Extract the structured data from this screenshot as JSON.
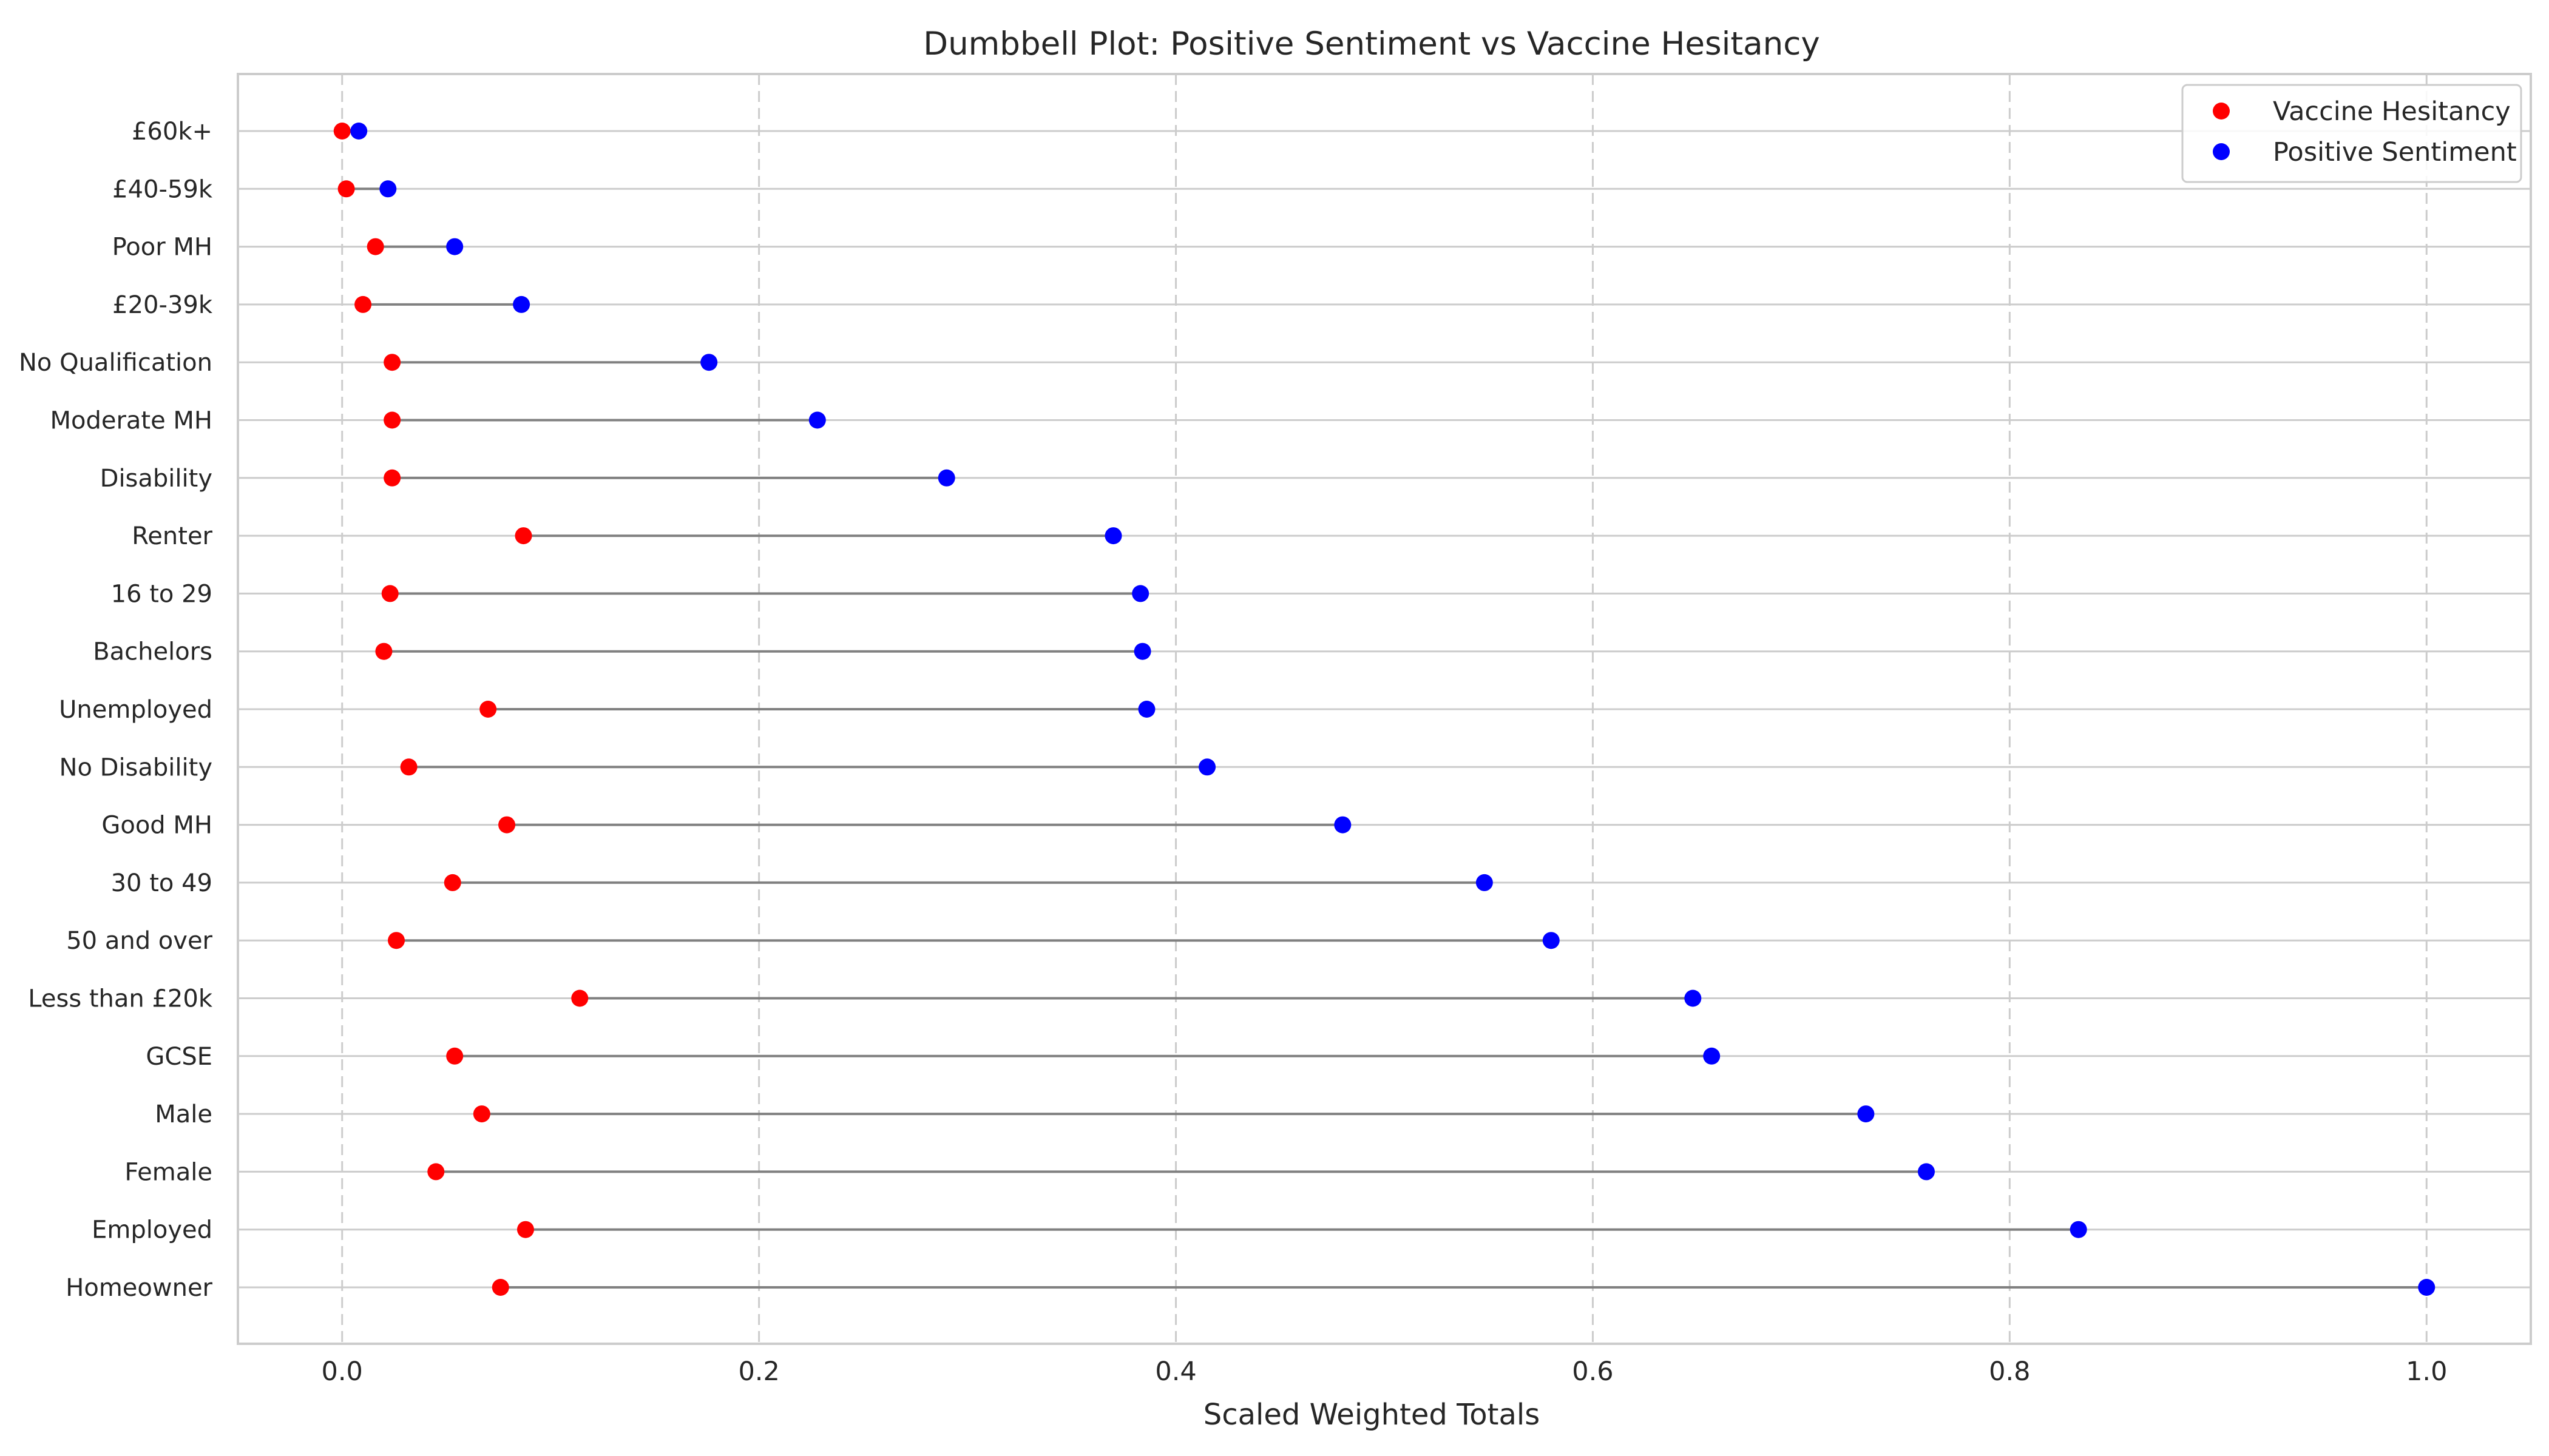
{
  "chart_data": {
    "type": "dumbbell",
    "title": "Dumbbell Plot: Positive Sentiment vs Vaccine Hesitancy",
    "xlabel": "Scaled Weighted Totals",
    "ylabel": "",
    "xlim": [
      -0.05,
      1.05
    ],
    "x_ticks": [
      0.0,
      0.2,
      0.4,
      0.6,
      0.8,
      1.0
    ],
    "x_tick_labels": [
      "0.0",
      "0.2",
      "0.4",
      "0.6",
      "0.8",
      "1.0"
    ],
    "grid": {
      "x": "dashed",
      "y": "solid"
    },
    "legend_position": "top-right",
    "categories": [
      "£60k+",
      "£40-59k",
      "Poor MH",
      "£20-39k",
      "No Qualification",
      "Moderate MH",
      "Disability",
      "Renter",
      "16 to 29",
      "Bachelors",
      "Unemployed",
      "No Disability",
      "Good MH",
      "30 to 49",
      "50 and over",
      "Less than £20k",
      "GCSE",
      "Male",
      "Female",
      "Employed",
      "Homeowner"
    ],
    "series": [
      {
        "name": "Vaccine Hesitancy",
        "color": "#ff0000",
        "values": [
          0.0,
          0.002,
          0.016,
          0.01,
          0.024,
          0.024,
          0.024,
          0.087,
          0.023,
          0.02,
          0.07,
          0.032,
          0.079,
          0.053,
          0.026,
          0.114,
          0.054,
          0.067,
          0.045,
          0.088,
          0.076
        ]
      },
      {
        "name": "Positive Sentiment",
        "color": "#0000ff",
        "values": [
          0.008,
          0.022,
          0.054,
          0.086,
          0.176,
          0.228,
          0.29,
          0.37,
          0.383,
          0.384,
          0.386,
          0.415,
          0.48,
          0.548,
          0.58,
          0.648,
          0.657,
          0.731,
          0.76,
          0.833,
          1.0
        ]
      }
    ],
    "connector_color": "#808080"
  }
}
